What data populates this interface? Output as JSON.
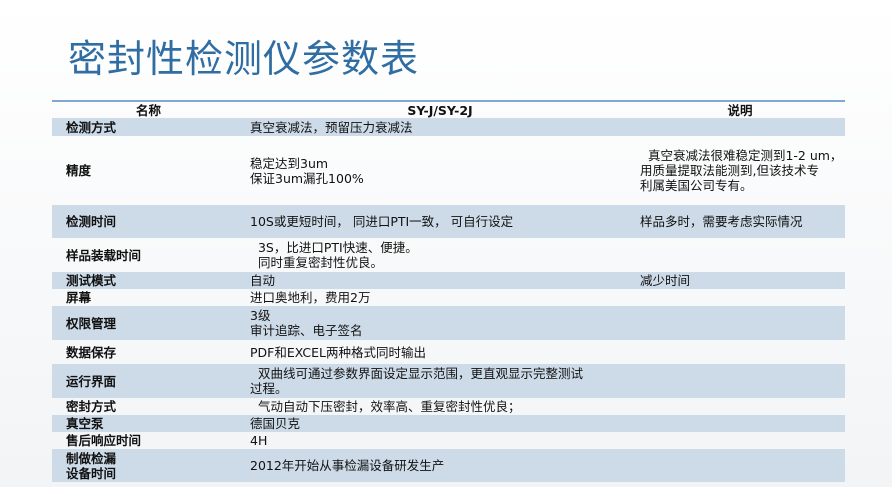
{
  "header": {
    "title": "密封性检测仪参数表"
  },
  "table": {
    "columns": [
      "名称",
      "SY-J/SY-2J",
      "说明"
    ],
    "rows": [
      [
        [
          "检测方式"
        ],
        [
          "真空衰减法，预留压力衰减法"
        ],
        []
      ],
      [
        [
          "精度"
        ],
        [
          "稳定达到3um",
          "保证3um漏孔100%"
        ],
        [
          "  真空衰减法很难稳定测到1-2 um，",
          "用质量提取法能测到,但该技术专",
          "利属美国公司专有。"
        ]
      ],
      [
        [
          "检测时间"
        ],
        [
          "10S或更短时间， 同进口PTI一致， 可自行设定"
        ],
        [
          "样品多时，需要考虑实际情况"
        ]
      ],
      [
        [
          "样品装载时间"
        ],
        [
          "  3S，比进口PTI快速、便捷。",
          "  同时重复密封性优良。"
        ],
        []
      ],
      [
        [
          "测试模式"
        ],
        [
          "自动"
        ],
        [
          "减少时间"
        ]
      ],
      [
        [
          "屏幕"
        ],
        [
          "进口奥地利，费用2万"
        ],
        []
      ],
      [
        [
          "权限管理"
        ],
        [
          "3级",
          "审计追踪、电子签名"
        ],
        []
      ],
      [
        [
          "数据保存"
        ],
        [
          "PDF和EXCEL两种格式同时输出"
        ],
        []
      ],
      [
        [
          "运行界面"
        ],
        [
          "  双曲线可通过参数界面设定显示范围，更直观显示完整测试",
          "过程。"
        ],
        []
      ],
      [
        [
          "密封方式"
        ],
        [
          "  气动自动下压密封，效率高、重复密封性优良；"
        ],
        []
      ],
      [
        [
          "真空泵"
        ],
        [
          "德国贝克"
        ],
        []
      ],
      [
        [
          "售后响应时间"
        ],
        [
          "4H"
        ],
        []
      ],
      [
        [
          "制做检漏",
          "设备时间"
        ],
        [
          "2012年开始从事检漏设备研发生产"
        ],
        []
      ]
    ]
  }
}
